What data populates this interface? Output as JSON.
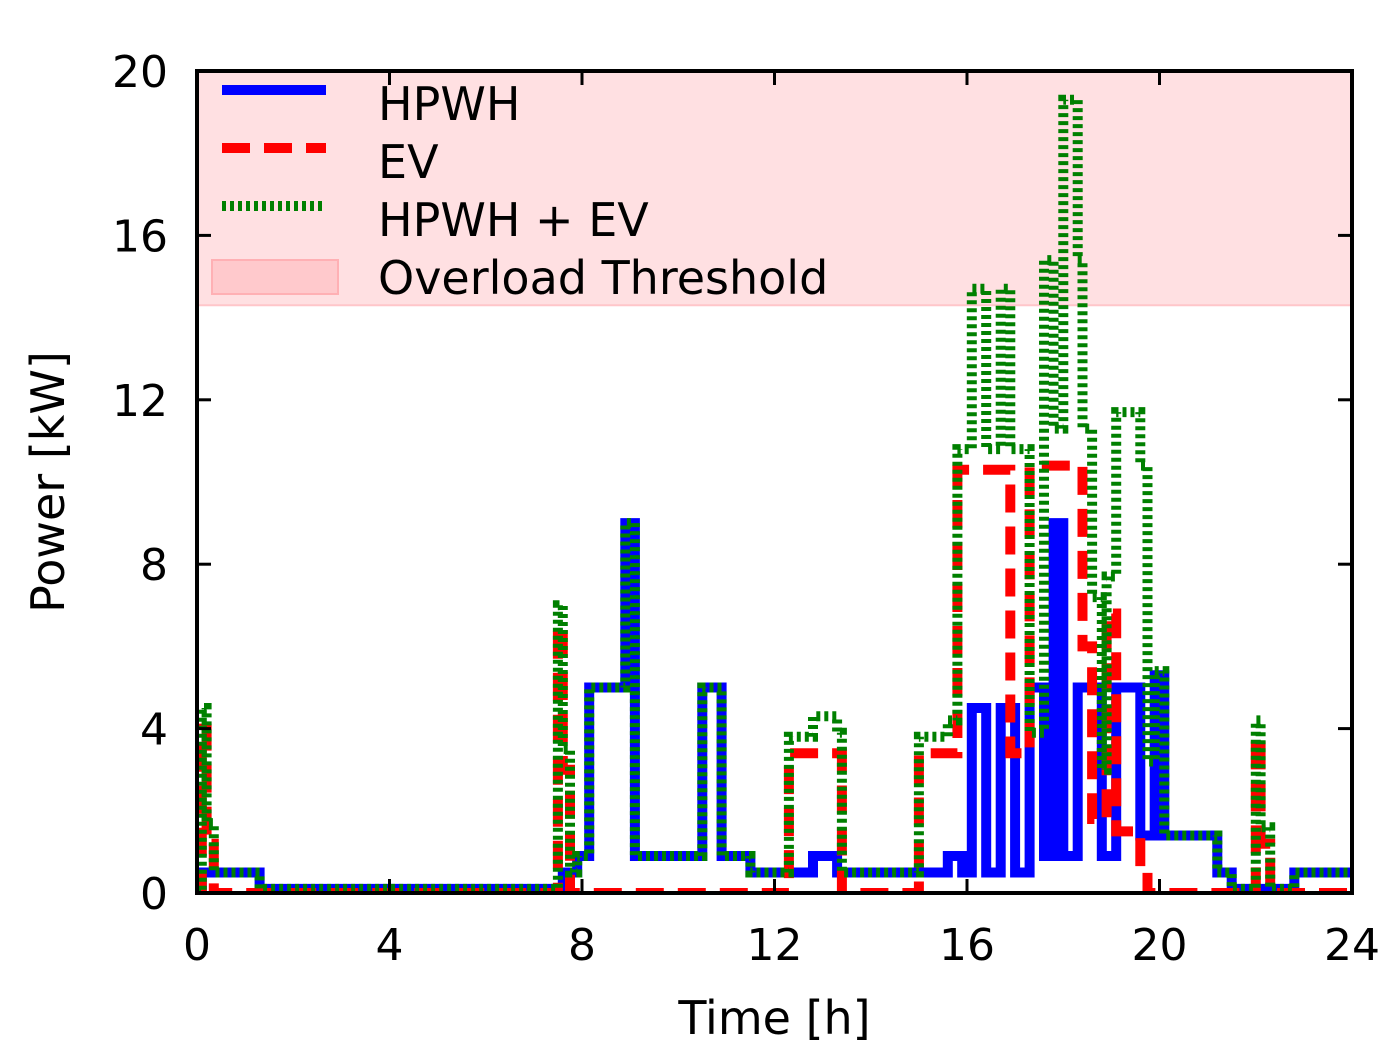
{
  "chart_data": {
    "type": "line",
    "title": "",
    "xlabel": "Time [h]",
    "ylabel": "Power [kW]",
    "xlim": [
      0,
      24
    ],
    "ylim": [
      0,
      20
    ],
    "xticks": [
      0,
      4,
      8,
      12,
      16,
      20,
      24
    ],
    "yticks": [
      0,
      4,
      8,
      12,
      16,
      20
    ],
    "grid": false,
    "legend_position": "top-left",
    "threshold": {
      "name": "Overload Threshold",
      "from": 14.3,
      "to": 20,
      "color": "#ffe0e2"
    },
    "series": [
      {
        "name": "HPWH",
        "color": "#0000ff",
        "style": "solid",
        "x": [
          0,
          0.1,
          0.1,
          0.3,
          0.3,
          1.3,
          1.3,
          7.6,
          7.6,
          7.9,
          7.9,
          8.15,
          8.15,
          8.3,
          8.3,
          8.9,
          8.9,
          9.1,
          9.1,
          9.3,
          9.3,
          10.5,
          10.5,
          10.9,
          10.9,
          11.5,
          11.5,
          12.8,
          12.8,
          13.3,
          13.3,
          15.6,
          15.6,
          15.9,
          15.9,
          16.1,
          16.1,
          16.4,
          16.4,
          16.7,
          16.7,
          17.0,
          17.0,
          17.3,
          17.3,
          17.6,
          17.6,
          17.8,
          17.8,
          18.0,
          18.0,
          18.3,
          18.3,
          18.8,
          18.8,
          19.1,
          19.1,
          19.6,
          19.6,
          19.9,
          19.9,
          20.1,
          20.1,
          21.2,
          21.2,
          21.5,
          21.5,
          22.8,
          22.8,
          24
        ],
        "y": [
          0,
          0,
          0.5,
          0.5,
          0.5,
          0.5,
          0.1,
          0.1,
          0.5,
          0.5,
          0.9,
          0.9,
          5.0,
          5.0,
          5.0,
          5.0,
          9.0,
          9.0,
          0.9,
          0.9,
          0.9,
          0.9,
          5.0,
          5.0,
          0.9,
          0.9,
          0.5,
          0.5,
          0.9,
          0.9,
          0.5,
          0.5,
          0.9,
          0.9,
          0.5,
          0.5,
          4.5,
          4.5,
          0.5,
          0.5,
          4.5,
          4.5,
          0.5,
          0.5,
          5.0,
          5.0,
          0.9,
          0.9,
          9.0,
          9.0,
          0.9,
          0.9,
          5.0,
          5.0,
          0.9,
          0.9,
          5.0,
          5.0,
          1.4,
          1.4,
          5.3,
          5.3,
          1.4,
          1.4,
          0.5,
          0.5,
          0.1,
          0.1,
          0.5,
          0.5
        ]
      },
      {
        "name": "EV",
        "color": "#ff0000",
        "style": "dashed",
        "x": [
          0,
          0.1,
          0.1,
          0.2,
          0.2,
          0.35,
          0.35,
          7.5,
          7.5,
          7.6,
          7.6,
          7.75,
          7.75,
          12.3,
          12.3,
          13.4,
          13.4,
          15.0,
          15.0,
          15.8,
          15.8,
          16.9,
          16.9,
          17.3,
          17.3,
          18.4,
          18.4,
          18.6,
          18.6,
          18.9,
          18.9,
          19.1,
          19.1,
          19.6,
          19.6,
          19.75,
          19.75,
          22.0,
          22.0,
          22.1,
          22.1,
          22.3,
          22.3,
          24
        ],
        "y": [
          0,
          0,
          4.0,
          4.0,
          1.2,
          1.2,
          0,
          0,
          6.5,
          6.5,
          3.0,
          3.0,
          0,
          0,
          3.4,
          3.4,
          0,
          0,
          3.4,
          3.4,
          10.3,
          10.3,
          3.4,
          3.4,
          10.4,
          10.4,
          6.0,
          6.0,
          1.8,
          1.8,
          6.8,
          6.8,
          1.5,
          1.5,
          0.5,
          0.5,
          0,
          0,
          3.8,
          3.8,
          1.2,
          1.2,
          0,
          0
        ]
      },
      {
        "name": "HPWH + EV",
        "color": "#008000",
        "style": "dotted",
        "x": [
          0,
          0.1,
          0.1,
          0.2,
          0.2,
          0.35,
          0.35,
          1.3,
          1.3,
          7.5,
          7.5,
          7.6,
          7.6,
          7.75,
          7.75,
          7.9,
          7.9,
          8.15,
          8.15,
          8.3,
          8.3,
          8.9,
          8.9,
          9.1,
          9.1,
          9.3,
          9.3,
          10.5,
          10.5,
          10.9,
          10.9,
          11.5,
          11.5,
          12.3,
          12.3,
          12.8,
          12.8,
          13.3,
          13.3,
          13.4,
          13.4,
          15.0,
          15.0,
          15.6,
          15.6,
          15.8,
          15.8,
          16.1,
          16.1,
          16.4,
          16.4,
          16.7,
          16.7,
          16.9,
          16.9,
          17.3,
          17.3,
          17.6,
          17.6,
          17.8,
          17.8,
          18.0,
          18.0,
          18.3,
          18.3,
          18.4,
          18.4,
          18.6,
          18.6,
          18.8,
          18.8,
          18.9,
          18.9,
          19.1,
          19.1,
          19.6,
          19.6,
          19.75,
          19.75,
          19.9,
          19.9,
          20.1,
          20.1,
          21.2,
          21.2,
          21.5,
          21.5,
          22.0,
          22.0,
          22.1,
          22.1,
          22.3,
          22.3,
          22.8,
          22.8,
          24
        ],
        "y": [
          0,
          0,
          4.5,
          4.5,
          1.7,
          1.7,
          0.5,
          0.5,
          0.1,
          0.1,
          7.0,
          7.0,
          3.5,
          3.5,
          0.5,
          0.5,
          0.9,
          0.9,
          5.0,
          5.0,
          5.0,
          5.0,
          9.0,
          9.0,
          0.9,
          0.9,
          0.9,
          0.9,
          5.0,
          5.0,
          0.9,
          0.9,
          0.5,
          0.5,
          3.8,
          3.8,
          4.3,
          4.3,
          3.9,
          3.9,
          0.5,
          0.5,
          3.8,
          3.8,
          4.2,
          4.2,
          10.8,
          10.8,
          14.7,
          14.7,
          10.8,
          10.8,
          14.7,
          14.7,
          10.8,
          10.8,
          3.9,
          3.9,
          15.4,
          15.4,
          11.3,
          11.3,
          19.3,
          19.3,
          15.4,
          15.4,
          11.3,
          11.3,
          7.2,
          7.2,
          3.0,
          3.0,
          7.7,
          7.7,
          11.7,
          11.7,
          10.4,
          10.4,
          3.2,
          3.2,
          5.4,
          5.4,
          1.4,
          1.4,
          0.5,
          0.5,
          0.1,
          0.1,
          4.2,
          4.2,
          1.6,
          1.6,
          0.1,
          0.1,
          0.5,
          0.5
        ]
      }
    ]
  }
}
